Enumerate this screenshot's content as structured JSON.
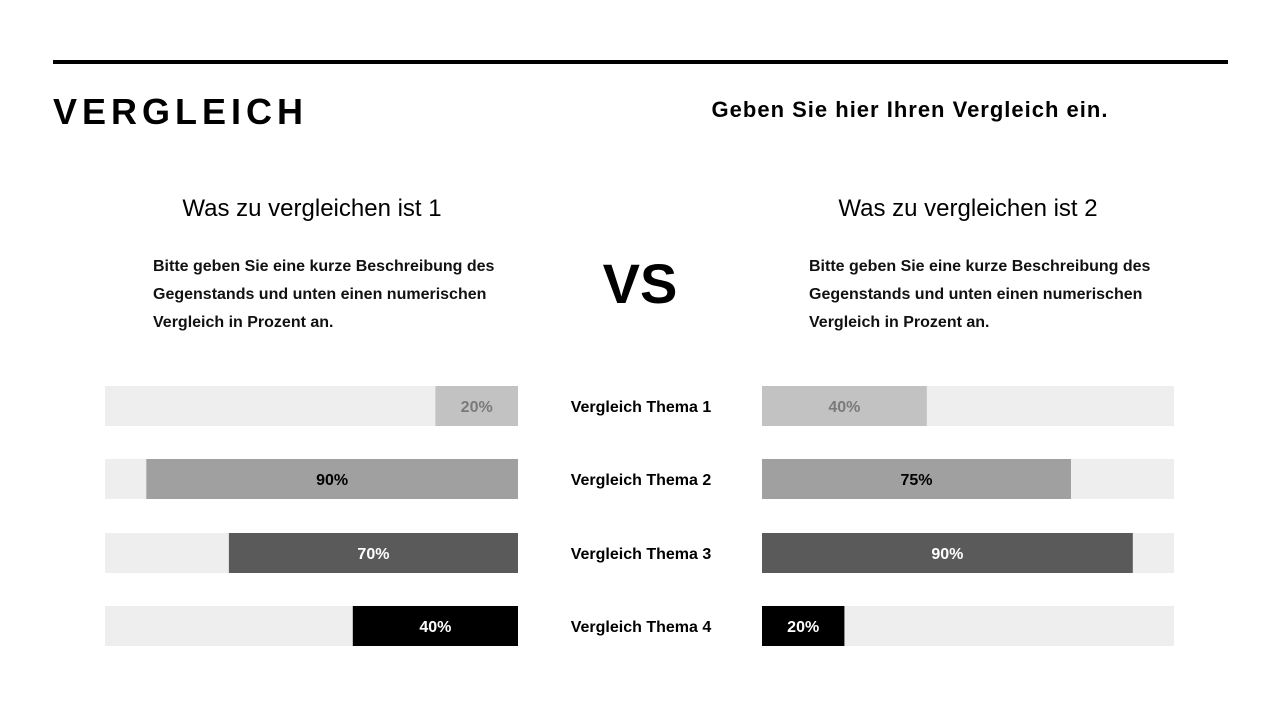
{
  "header": {
    "title": "VERGLEICH",
    "subtitle": "Geben Sie hier Ihren Vergleich ein."
  },
  "left_item": {
    "title": "Was zu vergleichen ist 1",
    "description": "Bitte geben Sie eine kurze Beschreibung des Gegenstands und unten einen numerischen Vergleich in Prozent an."
  },
  "right_item": {
    "title": "Was zu vergleichen ist 2",
    "description": "Bitte geben Sie eine kurze Beschreibung des Gegenstands und unten einen numerischen Vergleich in Prozent an."
  },
  "vs_label": "VS",
  "chart_data": {
    "type": "bar",
    "orientation": "horizontal",
    "layout": "diverging",
    "categories": [
      "Vergleich Thema 1",
      "Vergleich Thema 2",
      "Vergleich Thema 3",
      "Vergleich Thema 4"
    ],
    "series": [
      {
        "values": [
          20,
          90,
          70,
          40
        ],
        "labels": [
          "20%",
          "90%",
          "70%",
          "40%"
        ]
      },
      {
        "values": [
          40,
          75,
          90,
          20
        ],
        "labels": [
          "40%",
          "75%",
          "90%",
          "20%"
        ]
      }
    ],
    "xlim": [
      0,
      100
    ],
    "grid": false,
    "colors": {
      "track": "#eeeeee",
      "rows": [
        "#c2c2c2",
        "#a0a0a0",
        "#5a5a5a",
        "#000000"
      ],
      "label_dark": "#000000",
      "label_light": "#ffffff",
      "label_muted": "#7a7a7a"
    }
  }
}
